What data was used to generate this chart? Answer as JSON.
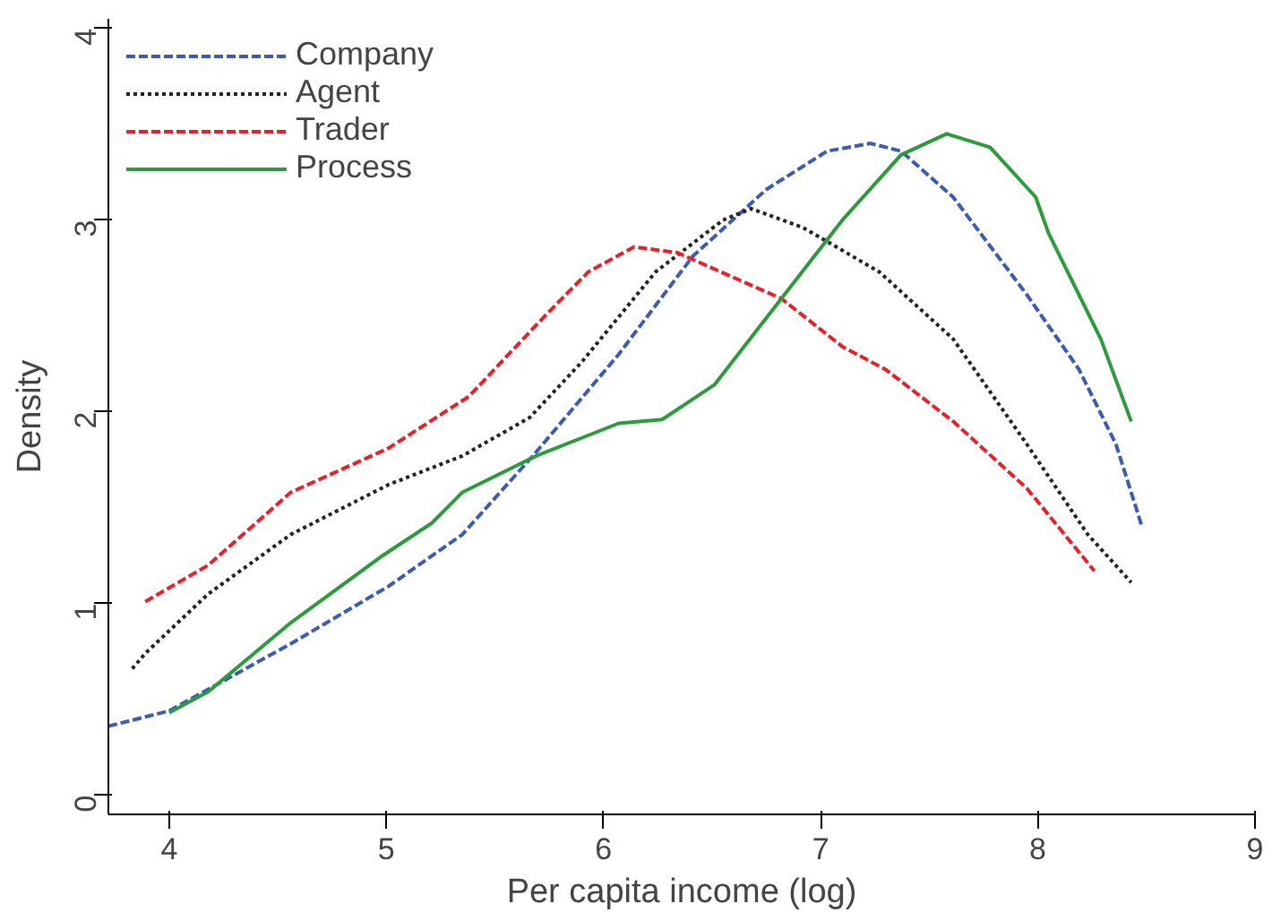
{
  "chart_data": {
    "type": "line",
    "xlabel": "Per capita income (log)",
    "ylabel": "Density",
    "xlim": [
      3.72,
      9.0
    ],
    "ylim": [
      -0.1,
      4.05
    ],
    "xticks": [
      4,
      5,
      6,
      7,
      8,
      9
    ],
    "yticks": [
      0,
      1,
      2,
      3,
      4
    ],
    "grid": false,
    "legend": "top left",
    "series": [
      {
        "name": "Company",
        "color": "#3b5bb5",
        "line_style": "dashed",
        "x": [
          3.72,
          4.0,
          4.56,
          5.01,
          5.35,
          5.69,
          6.07,
          6.41,
          6.75,
          7.03,
          7.23,
          7.37,
          7.61,
          7.95,
          8.19,
          8.36,
          8.48
        ],
        "values": [
          0.36,
          0.44,
          0.79,
          1.09,
          1.36,
          1.79,
          2.3,
          2.81,
          3.16,
          3.36,
          3.4,
          3.36,
          3.12,
          2.61,
          2.22,
          1.83,
          1.4
        ]
      },
      {
        "name": "Agent",
        "color": "#222222",
        "line_style": "dotted",
        "x": [
          3.83,
          3.89,
          4.18,
          4.56,
          5.01,
          5.35,
          5.66,
          5.9,
          6.24,
          6.55,
          6.68,
          6.92,
          7.27,
          7.61,
          7.95,
          8.23,
          8.43
        ],
        "values": [
          0.66,
          0.74,
          1.05,
          1.36,
          1.62,
          1.77,
          1.97,
          2.26,
          2.73,
          3.0,
          3.06,
          2.96,
          2.73,
          2.38,
          1.83,
          1.36,
          1.11
        ]
      },
      {
        "name": "Trader",
        "color": "#e8202a",
        "line_style": "dashed",
        "x": [
          3.89,
          4.18,
          4.56,
          5.01,
          5.38,
          5.73,
          5.93,
          6.14,
          6.34,
          6.82,
          7.1,
          7.3,
          7.61,
          7.95,
          8.26
        ],
        "values": [
          1.01,
          1.2,
          1.58,
          1.81,
          2.08,
          2.5,
          2.73,
          2.86,
          2.83,
          2.59,
          2.34,
          2.22,
          1.95,
          1.6,
          1.17
        ]
      },
      {
        "name": "Process",
        "color": "#2e9a3e",
        "line_style": "solid",
        "x": [
          4.0,
          4.18,
          4.56,
          4.97,
          5.21,
          5.35,
          5.69,
          6.07,
          6.27,
          6.51,
          6.86,
          7.1,
          7.37,
          7.58,
          7.78,
          7.99,
          8.05,
          8.29,
          8.43
        ],
        "values": [
          0.43,
          0.54,
          0.9,
          1.24,
          1.42,
          1.58,
          1.77,
          1.94,
          1.96,
          2.14,
          2.65,
          3.0,
          3.34,
          3.45,
          3.38,
          3.12,
          2.93,
          2.38,
          1.95
        ]
      }
    ]
  }
}
